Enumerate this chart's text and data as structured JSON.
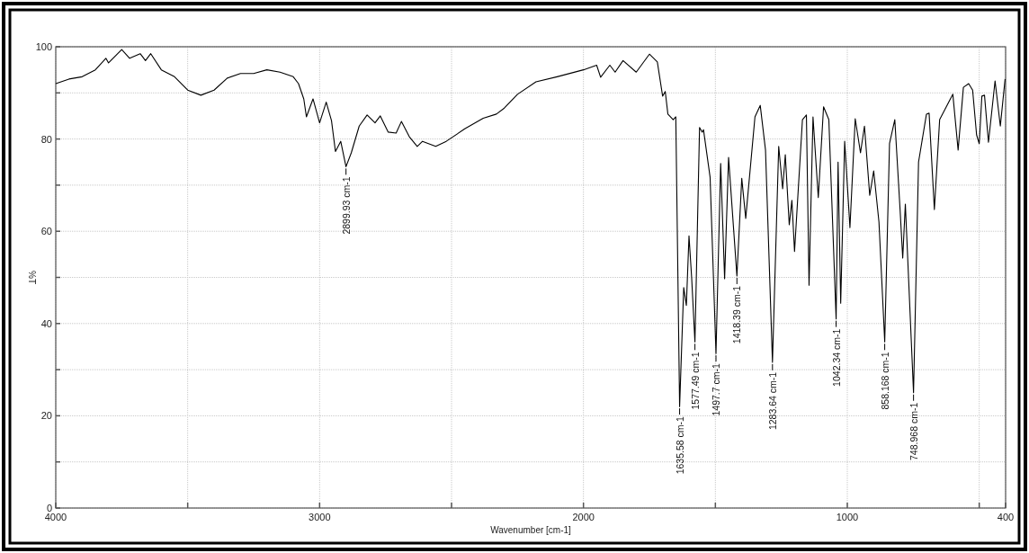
{
  "chart_data": {
    "type": "line",
    "xlabel": "Wavenumber [cm-1]",
    "ylabel": "%T",
    "xlim": [
      4000,
      400
    ],
    "ylim": [
      0,
      100
    ],
    "xticks": [
      4000,
      {
        "value": 3500,
        "label": null
      },
      3000,
      {
        "value": 2500,
        "label": null
      },
      2000,
      {
        "value": 1500,
        "label": null
      },
      1000,
      {
        "value": 500,
        "label": null
      },
      400
    ],
    "yticks": [
      0,
      {
        "value": 10,
        "label": null
      },
      20,
      {
        "value": 30,
        "label": null
      },
      40,
      {
        "value": 50,
        "label": null
      },
      60,
      {
        "value": 70,
        "label": null
      },
      80,
      {
        "value": 90,
        "label": null
      },
      100
    ],
    "grid": true,
    "marker": "none",
    "line_style": "solid",
    "series": [
      {
        "color": "#000000",
        "x": [
          4000,
          3950,
          3900,
          3850,
          3810,
          3800,
          3750,
          3720,
          3680,
          3660,
          3640,
          3600,
          3550,
          3500,
          3450,
          3400,
          3350,
          3300,
          3250,
          3200,
          3150,
          3100,
          3080,
          3060,
          3050,
          3025,
          3000,
          2975,
          2955,
          2940,
          2920,
          2900,
          2880,
          2850,
          2820,
          2790,
          2770,
          2740,
          2710,
          2690,
          2660,
          2630,
          2610,
          2560,
          2520,
          2450,
          2380,
          2330,
          2300,
          2250,
          2180,
          2100,
          2000,
          1950,
          1935,
          1900,
          1880,
          1850,
          1800,
          1750,
          1720,
          1700,
          1690,
          1680,
          1660,
          1650,
          1635.58,
          1620,
          1610,
          1600,
          1590,
          1577.49,
          1560,
          1550,
          1545,
          1520,
          1497.7,
          1480,
          1465,
          1450,
          1418.39,
          1400,
          1385,
          1350,
          1330,
          1310,
          1283.64,
          1260,
          1245,
          1235,
          1220,
          1210,
          1200,
          1170,
          1155,
          1145,
          1130,
          1110,
          1090,
          1070,
          1042.34,
          1035,
          1025,
          1010,
          990,
          970,
          950,
          935,
          915,
          900,
          880,
          858.168,
          840,
          820,
          800,
          790,
          780,
          748.968,
          730,
          700,
          690,
          670,
          650,
          600,
          580,
          560,
          540,
          525,
          510,
          500,
          490,
          480,
          465,
          440,
          420,
          402
        ],
        "values": [
          92,
          93,
          93.5,
          95,
          97.5,
          96.5,
          99.4,
          97.5,
          98.5,
          97,
          98.5,
          95,
          93.5,
          90.6,
          89.5,
          90.6,
          93.2,
          94.2,
          94.2,
          95,
          94.5,
          93.5,
          92,
          88.7,
          84.8,
          88.7,
          83.5,
          88,
          84,
          77.3,
          79.5,
          74,
          77,
          82.8,
          85.2,
          83.5,
          85,
          81.5,
          81.3,
          83.8,
          80.5,
          78.4,
          79.5,
          78.4,
          79.5,
          82.2,
          84.5,
          85.4,
          86.7,
          89.7,
          92.4,
          93.5,
          95,
          96,
          93.4,
          96,
          94.5,
          97,
          94.5,
          98.4,
          96.7,
          89.3,
          90.3,
          85.4,
          84.2,
          84.8,
          22,
          47.8,
          43.9,
          59,
          50,
          36,
          82.5,
          81.5,
          82,
          71.7,
          33.5,
          74.7,
          49.7,
          76,
          50.3,
          71.5,
          62.8,
          84.8,
          87.3,
          77.6,
          31.6,
          78.4,
          69.2,
          76.6,
          61.4,
          66.7,
          55.6,
          84.2,
          85.2,
          48.3,
          84.8,
          67.3,
          87,
          84.2,
          41,
          75,
          44.4,
          79.5,
          60.8,
          84.4,
          77,
          82.8,
          67.8,
          73.1,
          62,
          36,
          79,
          84.2,
          64.7,
          54.2,
          65.9,
          25,
          75,
          85.4,
          85.6,
          64.7,
          84.2,
          89.7,
          77.6,
          91.2,
          92,
          90.6,
          80.9,
          79,
          89.3,
          89.5,
          79.3,
          92.6,
          82.8,
          93
        ]
      }
    ],
    "annotations": [
      {
        "text": "2899.93 cm-1",
        "x": 2899.93,
        "y": 74
      },
      {
        "text": "1635.58 cm-1",
        "x": 1635.58,
        "y": 22
      },
      {
        "text": "1577.49 cm-1",
        "x": 1577.49,
        "y": 36
      },
      {
        "text": "1497.7 cm-1",
        "x": 1497.7,
        "y": 33.5
      },
      {
        "text": "1418.39 cm-1",
        "x": 1418.39,
        "y": 50.3
      },
      {
        "text": "1283.64 cm-1",
        "x": 1283.64,
        "y": 31.6
      },
      {
        "text": "1042.34 cm-1",
        "x": 1042.34,
        "y": 41
      },
      {
        "text": "858.168 cm-1",
        "x": 858.168,
        "y": 36
      },
      {
        "text": "748.968 cm-1",
        "x": 748.968,
        "y": 25
      }
    ]
  }
}
